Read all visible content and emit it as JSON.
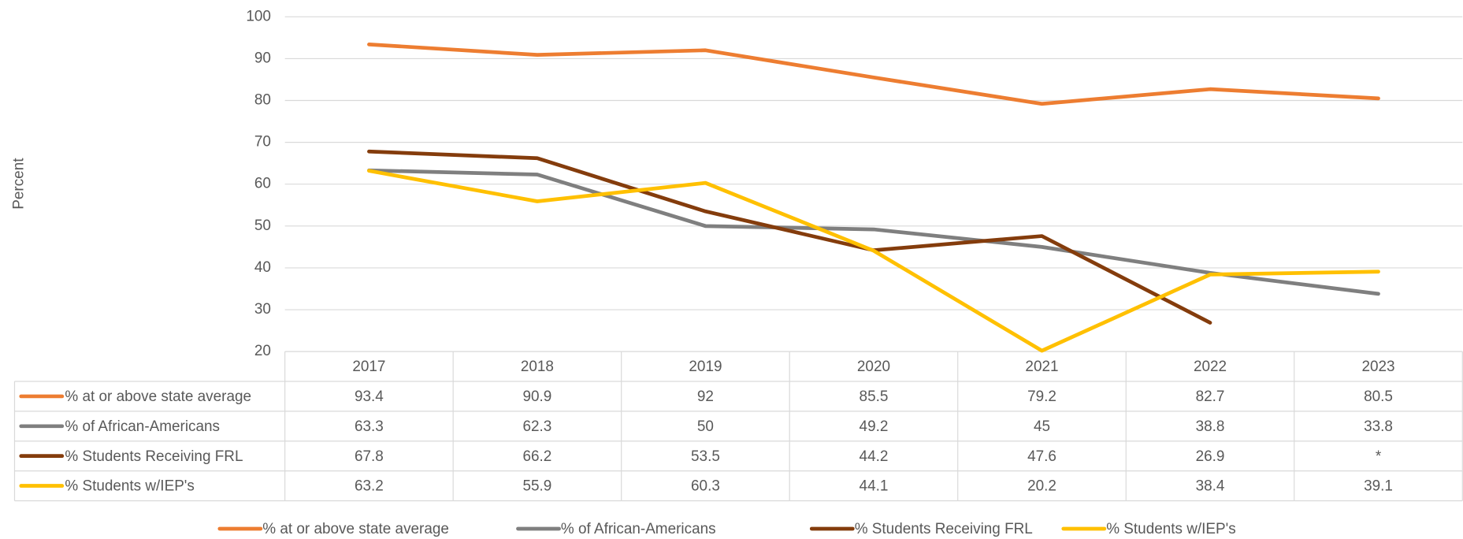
{
  "chart_data": {
    "type": "line",
    "y_label": "Percent",
    "categories": [
      "2017",
      "2018",
      "2019",
      "2020",
      "2021",
      "2022",
      "2023"
    ],
    "series": [
      {
        "name": "% at or above state average",
        "color": "#ED7D31",
        "values": [
          93.4,
          90.9,
          92,
          85.5,
          79.2,
          82.7,
          80.5
        ]
      },
      {
        "name": "% of African-Americans",
        "color": "#7F7F7F",
        "values": [
          63.3,
          62.3,
          50,
          49.2,
          45,
          38.8,
          33.8
        ]
      },
      {
        "name": "% Students Receiving FRL",
        "color": "#843C0C",
        "values": [
          67.8,
          66.2,
          53.5,
          44.2,
          47.6,
          26.9,
          null
        ],
        "value_labels": [
          "67.8",
          "66.2",
          "53.5",
          "44.2",
          "47.6",
          "26.9",
          "*"
        ]
      },
      {
        "name": "% Students w/IEP's",
        "color": "#FFC000",
        "values": [
          63.2,
          55.9,
          60.3,
          44.1,
          20.2,
          38.4,
          39.1
        ]
      }
    ],
    "ylim": [
      20,
      100
    ],
    "yticks": [
      20,
      30,
      40,
      50,
      60,
      70,
      80,
      90,
      100
    ],
    "grid": true,
    "legend": "bottom",
    "data_table": true
  }
}
